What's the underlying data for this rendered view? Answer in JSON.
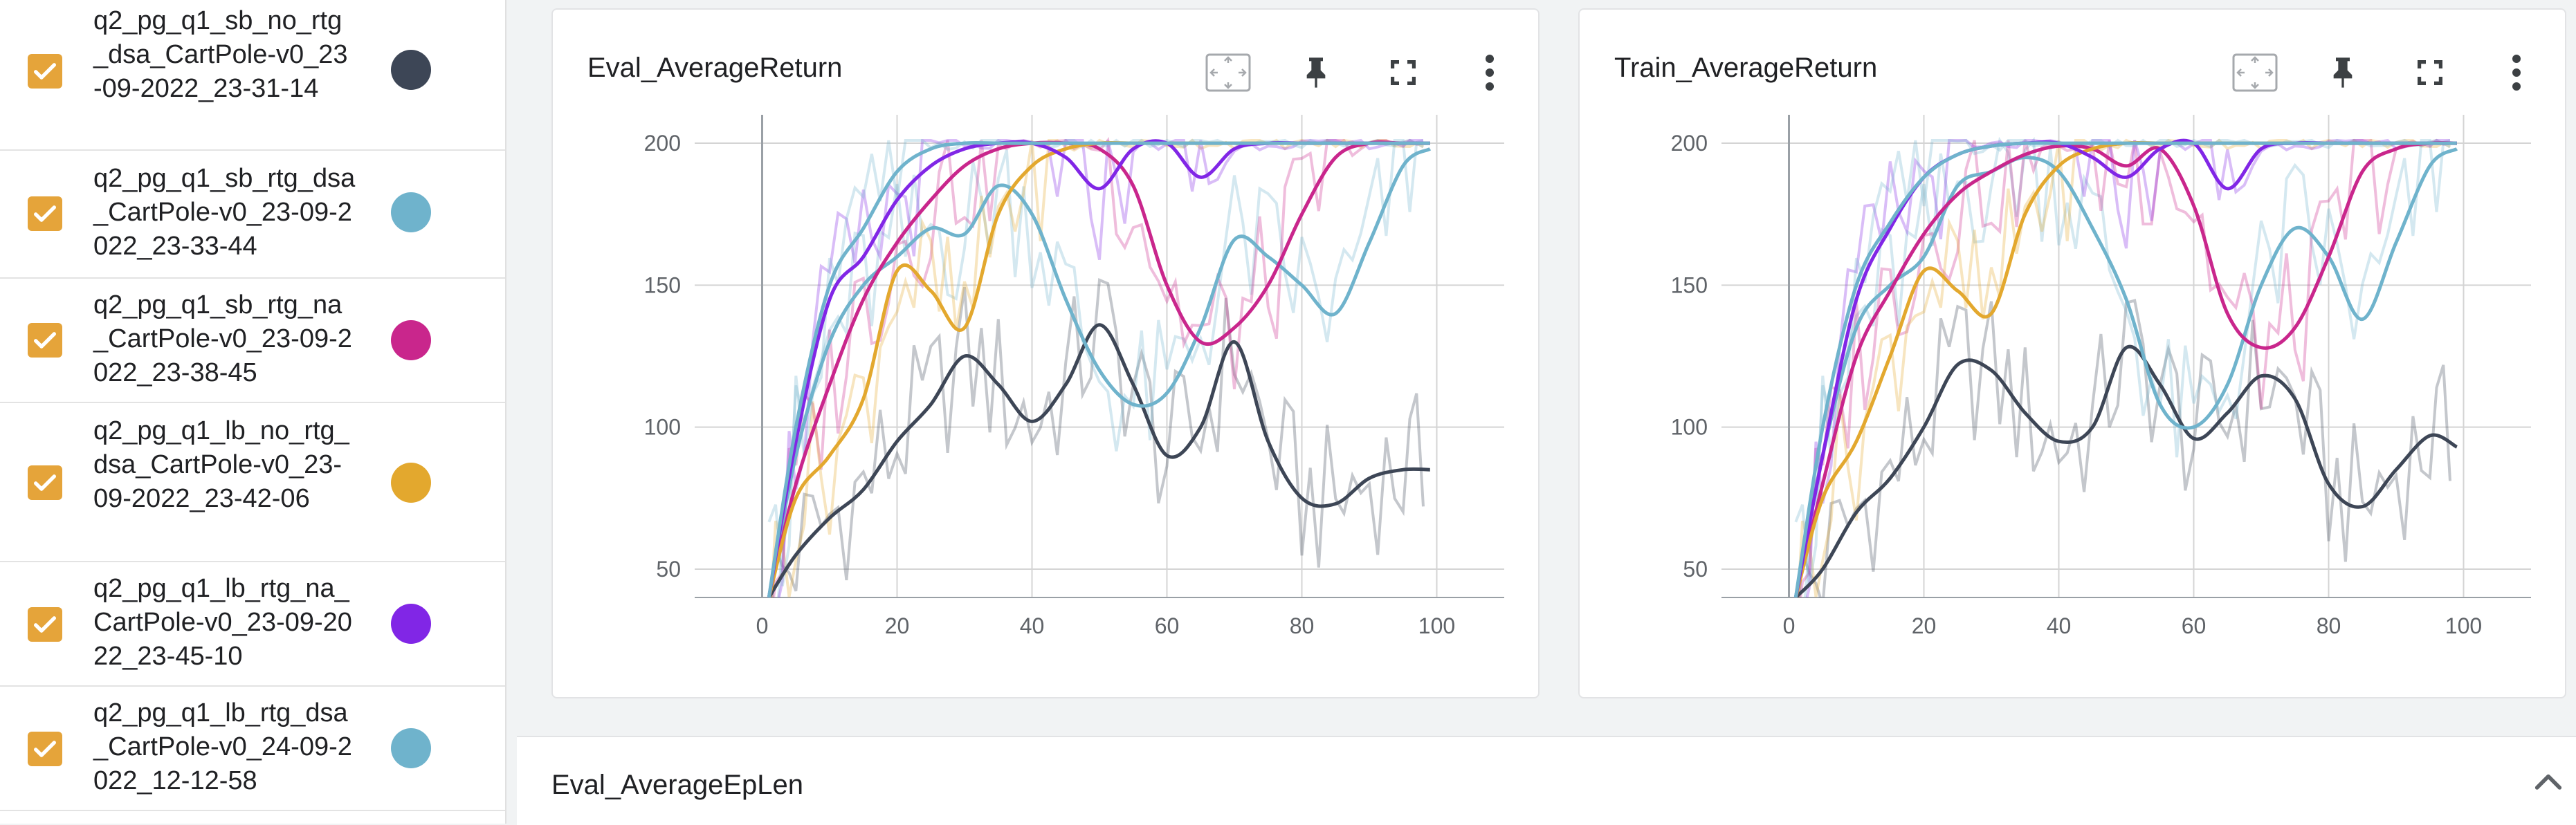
{
  "runs": [
    {
      "label": "q2_pg_q1_sb_no_rtg_dsa_CartPole-v0_23-09-2022_23-31-14",
      "color": "#3d4656",
      "checked": true
    },
    {
      "label": "q2_pg_q1_sb_rtg_dsa_CartPole-v0_23-09-2022_23-33-44",
      "color": "#6fb3cc",
      "checked": true
    },
    {
      "label": "q2_pg_q1_sb_rtg_na_CartPole-v0_23-09-2022_23-38-45",
      "color": "#c9268c",
      "checked": true
    },
    {
      "label": "q2_pg_q1_lb_no_rtg_dsa_CartPole-v0_23-09-2022_23-42-06",
      "color": "#e3a82e",
      "checked": true
    },
    {
      "label": "q2_pg_q1_lb_rtg_na_CartPole-v0_23-09-2022_23-45-10",
      "color": "#8126e6",
      "checked": true
    },
    {
      "label": "q2_pg_q1_lb_rtg_dsa_CartPole-v0_24-09-2022_12-12-58",
      "color": "#6fb3cc",
      "checked": true
    }
  ],
  "cards": [
    {
      "title": "Eval_AverageReturn"
    },
    {
      "title": "Train_AverageReturn"
    }
  ],
  "icons": [
    "fit-domain-icon",
    "pin-icon",
    "fullscreen-icon",
    "more-vert-icon"
  ],
  "section": {
    "title": "Eval_AverageEpLen"
  },
  "chart_data": [
    {
      "type": "line",
      "title": "Eval_AverageReturn",
      "xlim": [
        -10,
        110
      ],
      "ylim": [
        40,
        210
      ],
      "xticks": [
        0,
        20,
        40,
        60,
        80,
        100
      ],
      "yticks": [
        50,
        100,
        150,
        200
      ],
      "grid": true,
      "smoothing": "smoothed lines drawn over faint raw traces",
      "series": [
        {
          "name": "q2_pg_q1_sb_no_rtg_dsa_CartPole-v0_23-09-2022_23-31-14",
          "color": "#3d4656",
          "x": [
            1,
            5,
            10,
            15,
            20,
            25,
            30,
            35,
            40,
            45,
            50,
            55,
            60,
            65,
            70,
            75,
            80,
            85,
            90,
            95,
            99
          ],
          "y": [
            40,
            55,
            68,
            78,
            95,
            108,
            125,
            115,
            102,
            115,
            136,
            115,
            90,
            100,
            130,
            95,
            75,
            73,
            82,
            85,
            85
          ]
        },
        {
          "name": "q2_pg_q1_sb_rtg_dsa_CartPole-v0_23-09-2022_23-33-44",
          "color": "#6fb3cc",
          "x": [
            1,
            5,
            10,
            15,
            20,
            25,
            30,
            35,
            40,
            45,
            50,
            55,
            60,
            65,
            70,
            75,
            80,
            85,
            90,
            95,
            99
          ],
          "y": [
            40,
            90,
            130,
            150,
            160,
            170,
            168,
            185,
            175,
            145,
            120,
            108,
            112,
            135,
            166,
            160,
            150,
            140,
            165,
            192,
            198
          ]
        },
        {
          "name": "q2_pg_q1_sb_rtg_na_CartPole-v0_23-09-2022_23-38-45",
          "color": "#c9268c",
          "x": [
            1,
            5,
            10,
            15,
            20,
            25,
            30,
            35,
            40,
            45,
            50,
            55,
            60,
            65,
            70,
            75,
            80,
            85,
            90,
            95,
            99
          ],
          "y": [
            40,
            80,
            115,
            145,
            165,
            180,
            192,
            198,
            200,
            200,
            198,
            185,
            150,
            130,
            135,
            150,
            175,
            195,
            200,
            200,
            200
          ]
        },
        {
          "name": "q2_pg_q1_lb_no_rtg_dsa_CartPole-v0_23-09-2022_23-42-06",
          "color": "#e3a82e",
          "x": [
            1,
            5,
            10,
            15,
            20,
            25,
            30,
            35,
            40,
            45,
            50,
            55,
            60,
            65,
            70,
            75,
            80,
            85,
            90,
            95,
            99
          ],
          "y": [
            40,
            75,
            90,
            110,
            155,
            148,
            135,
            175,
            192,
            198,
            200,
            200,
            200,
            200,
            200,
            200,
            200,
            200,
            200,
            200,
            200
          ]
        },
        {
          "name": "q2_pg_q1_lb_rtg_na_CartPole-v0_23-09-2022_23-45-10",
          "color": "#8126e6",
          "x": [
            1,
            5,
            10,
            15,
            20,
            25,
            30,
            35,
            40,
            45,
            50,
            55,
            60,
            65,
            70,
            75,
            80,
            85,
            90,
            95,
            99
          ],
          "y": [
            40,
            95,
            145,
            160,
            180,
            192,
            198,
            200,
            200,
            195,
            184,
            198,
            200,
            188,
            198,
            200,
            200,
            200,
            200,
            200,
            200
          ]
        },
        {
          "name": "q2_pg_q1_lb_rtg_dsa_CartPole-v0_24-09-2022_12-12-58",
          "color": "#6fb3cc",
          "x": [
            1,
            5,
            10,
            15,
            20,
            25,
            30,
            35,
            40,
            45,
            50,
            55,
            60,
            65,
            70,
            75,
            80,
            85,
            90,
            95,
            99
          ],
          "y": [
            40,
            100,
            150,
            170,
            190,
            198,
            200,
            200,
            200,
            200,
            200,
            200,
            200,
            200,
            200,
            200,
            200,
            200,
            200,
            200,
            200
          ]
        }
      ]
    },
    {
      "type": "line",
      "title": "Train_AverageReturn",
      "xlim": [
        -10,
        110
      ],
      "ylim": [
        40,
        210
      ],
      "xticks": [
        0,
        20,
        40,
        60,
        80,
        100
      ],
      "yticks": [
        50,
        100,
        150,
        200
      ],
      "grid": true,
      "smoothing": "smoothed lines drawn over faint raw traces",
      "series": [
        {
          "name": "q2_pg_q1_sb_no_rtg_dsa_CartPole-v0_23-09-2022_23-31-14",
          "color": "#3d4656",
          "x": [
            1,
            5,
            10,
            15,
            20,
            25,
            30,
            35,
            40,
            45,
            50,
            55,
            60,
            65,
            70,
            75,
            80,
            85,
            90,
            95,
            99
          ],
          "y": [
            40,
            50,
            70,
            82,
            100,
            122,
            120,
            105,
            95,
            100,
            128,
            115,
            96,
            105,
            118,
            110,
            80,
            72,
            85,
            97,
            93
          ]
        },
        {
          "name": "q2_pg_q1_sb_rtg_dsa_CartPole-v0_23-09-2022_23-33-44",
          "color": "#6fb3cc",
          "x": [
            1,
            5,
            10,
            15,
            20,
            25,
            30,
            35,
            40,
            45,
            50,
            55,
            60,
            65,
            70,
            75,
            80,
            85,
            90,
            95,
            99
          ],
          "y": [
            40,
            90,
            135,
            150,
            160,
            185,
            190,
            195,
            190,
            170,
            145,
            108,
            100,
            115,
            150,
            170,
            160,
            138,
            165,
            192,
            198
          ]
        },
        {
          "name": "q2_pg_q1_sb_rtg_na_CartPole-v0_23-09-2022_23-38-45",
          "color": "#c9268c",
          "x": [
            1,
            5,
            10,
            15,
            20,
            25,
            30,
            35,
            40,
            45,
            50,
            55,
            60,
            65,
            70,
            75,
            80,
            85,
            90,
            95,
            99
          ],
          "y": [
            40,
            80,
            125,
            148,
            168,
            182,
            190,
            196,
            199,
            198,
            192,
            198,
            178,
            140,
            128,
            135,
            160,
            190,
            198,
            200,
            200
          ]
        },
        {
          "name": "q2_pg_q1_lb_no_rtg_dsa_CartPole-v0_23-09-2022_23-42-06",
          "color": "#e3a82e",
          "x": [
            1,
            5,
            10,
            15,
            20,
            25,
            30,
            35,
            40,
            45,
            50,
            55,
            60,
            65,
            70,
            75,
            80,
            85,
            90,
            95,
            99
          ],
          "y": [
            40,
            75,
            95,
            125,
            155,
            148,
            140,
            175,
            192,
            198,
            200,
            200,
            200,
            200,
            200,
            200,
            200,
            200,
            200,
            200,
            200
          ]
        },
        {
          "name": "q2_pg_q1_lb_rtg_na_CartPole-v0_23-09-2022_23-45-10",
          "color": "#8126e6",
          "x": [
            1,
            5,
            10,
            15,
            20,
            25,
            30,
            35,
            40,
            45,
            50,
            55,
            60,
            65,
            70,
            75,
            80,
            85,
            90,
            95,
            99
          ],
          "y": [
            40,
            90,
            145,
            170,
            188,
            196,
            199,
            200,
            200,
            195,
            188,
            198,
            200,
            184,
            198,
            200,
            200,
            200,
            200,
            200,
            200
          ]
        },
        {
          "name": "q2_pg_q1_lb_rtg_dsa_CartPole-v0_24-09-2022_12-12-58",
          "color": "#6fb3cc",
          "x": [
            1,
            5,
            10,
            15,
            20,
            25,
            30,
            35,
            40,
            45,
            50,
            55,
            60,
            65,
            70,
            75,
            80,
            85,
            90,
            95,
            99
          ],
          "y": [
            40,
            100,
            150,
            172,
            188,
            196,
            199,
            200,
            200,
            200,
            200,
            200,
            200,
            200,
            200,
            200,
            200,
            200,
            200,
            200,
            200
          ]
        }
      ]
    }
  ]
}
